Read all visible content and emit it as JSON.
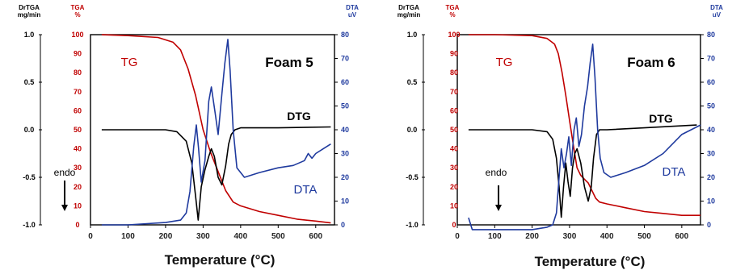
{
  "colors": {
    "tga": "#c00000",
    "dta": "#1f3a9e",
    "dtg": "#000000",
    "axis_black": "#000000"
  },
  "shared": {
    "xlabel": "Temperature (°C)",
    "y_left_outer_label": [
      "DrTGA",
      "mg/min"
    ],
    "y_left_inner_label": [
      "TGA",
      "%"
    ],
    "y_right_label": [
      "DTA",
      "uV"
    ],
    "arrow_label": "endo"
  },
  "chart_data": [
    {
      "type": "line",
      "title": "Foam 5",
      "xlim": [
        0,
        650
      ],
      "x_ticks": [
        "0",
        "100",
        "200",
        "300",
        "400",
        "500",
        "600"
      ],
      "y_axes": {
        "dtg": {
          "label": "DrTGA mg/min",
          "range": [
            -1.0,
            1.0
          ],
          "ticks": [
            "1.0",
            "0.5",
            "0.0",
            "-0.5",
            "-1.0"
          ]
        },
        "tga": {
          "label": "TGA %",
          "range": [
            0,
            100
          ],
          "ticks": [
            "100",
            "90",
            "80",
            "70",
            "60",
            "50",
            "40",
            "30",
            "20",
            "10",
            "0"
          ]
        },
        "dta": {
          "label": "DTA uV",
          "range": [
            0,
            80
          ],
          "ticks": [
            "80",
            "70",
            "60",
            "50",
            "40",
            "30",
            "20",
            "10",
            "0"
          ]
        }
      },
      "series": [
        {
          "name": "TG",
          "axis": "tga",
          "x": [
            30,
            100,
            180,
            220,
            240,
            260,
            280,
            300,
            320,
            340,
            360,
            380,
            400,
            450,
            500,
            550,
            600,
            640
          ],
          "y": [
            100,
            99.5,
            98.5,
            96,
            92,
            82,
            68,
            50,
            38,
            28,
            18,
            12,
            10,
            7,
            5,
            3,
            2,
            1
          ]
        },
        {
          "name": "DTG",
          "axis": "dtg",
          "x": [
            30,
            100,
            200,
            230,
            255,
            270,
            280,
            287,
            295,
            305,
            315,
            322,
            330,
            340,
            350,
            360,
            368,
            375,
            385,
            400,
            500,
            640
          ],
          "y": [
            0.0,
            0.0,
            0.0,
            -0.02,
            -0.12,
            -0.35,
            -0.7,
            -0.95,
            -0.6,
            -0.42,
            -0.28,
            -0.2,
            -0.28,
            -0.5,
            -0.58,
            -0.38,
            -0.15,
            -0.05,
            0.0,
            0.02,
            0.02,
            0.03
          ]
        },
        {
          "name": "DTA",
          "axis": "dta",
          "x": [
            30,
            100,
            200,
            240,
            255,
            265,
            275,
            282,
            288,
            295,
            305,
            315,
            322,
            332,
            340,
            350,
            358,
            366,
            372,
            380,
            390,
            410,
            450,
            500,
            540,
            570,
            580,
            590,
            600,
            620,
            640
          ],
          "y": [
            0,
            0,
            1,
            2,
            5,
            14,
            33,
            42,
            32,
            18,
            27,
            52,
            58,
            47,
            38,
            55,
            68,
            78,
            65,
            40,
            24,
            20,
            22,
            24,
            25,
            27,
            30,
            28,
            30,
            32,
            34
          ]
        }
      ],
      "annotations": [
        "TG",
        "DTG",
        "DTA",
        "endo"
      ]
    },
    {
      "type": "line",
      "title": "Foam 6",
      "xlim": [
        0,
        650
      ],
      "x_ticks": [
        "0",
        "100",
        "200",
        "300",
        "400",
        "500",
        "600"
      ],
      "y_axes": {
        "dtg": {
          "label": "DrTGA mg/min",
          "range": [
            -1.0,
            1.0
          ],
          "ticks": [
            "1.0",
            "0.5",
            "0.0",
            "-0.5",
            "-1.0"
          ]
        },
        "tga": {
          "label": "TGA %",
          "range": [
            0,
            100
          ],
          "ticks": [
            "100",
            "90",
            "80",
            "70",
            "60",
            "50",
            "40",
            "30",
            "20",
            "10",
            "0"
          ]
        },
        "dta": {
          "label": "DTA uV",
          "range": [
            0,
            80
          ],
          "ticks": [
            "80",
            "70",
            "60",
            "50",
            "40",
            "30",
            "20",
            "10",
            "0"
          ]
        }
      },
      "series": [
        {
          "name": "TG",
          "axis": "tga",
          "x": [
            30,
            100,
            200,
            240,
            260,
            270,
            280,
            290,
            300,
            310,
            320,
            330,
            340,
            350,
            360,
            370,
            380,
            400,
            450,
            500,
            550,
            600,
            650
          ],
          "y": [
            100,
            100,
            99.5,
            98,
            95,
            90,
            80,
            68,
            55,
            42,
            30,
            26,
            24,
            22,
            18,
            14,
            12,
            11,
            9,
            7,
            6,
            5,
            5
          ]
        },
        {
          "name": "DTG",
          "axis": "dtg",
          "x": [
            30,
            100,
            200,
            240,
            255,
            265,
            272,
            278,
            284,
            290,
            296,
            302,
            308,
            314,
            320,
            330,
            340,
            350,
            358,
            364,
            372,
            380,
            400,
            500,
            640
          ],
          "y": [
            0.0,
            0.0,
            0.0,
            -0.02,
            -0.1,
            -0.3,
            -0.6,
            -0.92,
            -0.6,
            -0.35,
            -0.55,
            -0.7,
            -0.4,
            -0.25,
            -0.2,
            -0.35,
            -0.6,
            -0.75,
            -0.6,
            -0.3,
            -0.05,
            0.0,
            0.0,
            0.02,
            0.05
          ]
        },
        {
          "name": "DTA",
          "axis": "dta",
          "x": [
            30,
            40,
            100,
            200,
            240,
            255,
            265,
            272,
            278,
            285,
            292,
            298,
            305,
            312,
            318,
            325,
            332,
            340,
            348,
            355,
            362,
            368,
            375,
            382,
            392,
            410,
            450,
            500,
            550,
            600,
            650
          ],
          "y": [
            3,
            -2,
            -2,
            -2,
            -1,
            0,
            5,
            20,
            32,
            24,
            30,
            37,
            25,
            40,
            45,
            33,
            38,
            50,
            58,
            68,
            76,
            62,
            40,
            28,
            22,
            20,
            22,
            25,
            30,
            38,
            42
          ]
        }
      ],
      "annotations": [
        "TG",
        "DTG",
        "DTA",
        "endo"
      ]
    }
  ]
}
